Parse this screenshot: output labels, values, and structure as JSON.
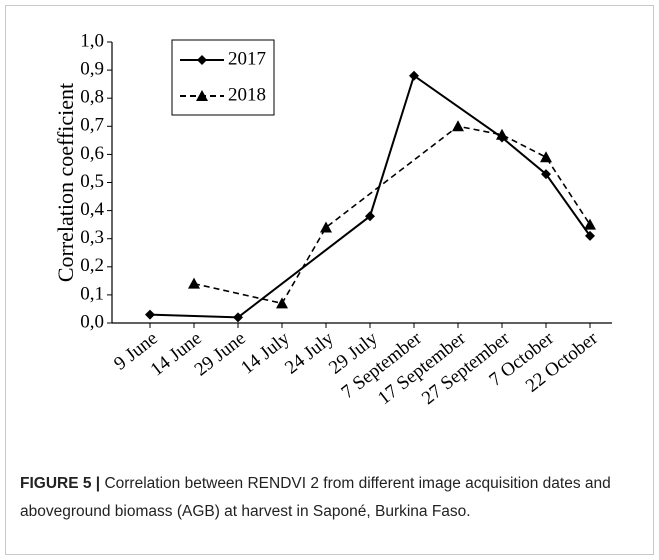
{
  "chart_data": {
    "type": "line",
    "ylabel": "Correlation coefficient",
    "categories": [
      "9 June",
      "14 June",
      "29 June",
      "14 July",
      "24 July",
      "29 July",
      "7 September",
      "17 September",
      "27 September",
      "7 October",
      "22 October"
    ],
    "series": [
      {
        "name": "2017",
        "color": "#000000",
        "dash": false,
        "marker": "diamond",
        "values": [
          0.03,
          null,
          0.02,
          null,
          null,
          0.38,
          0.88,
          null,
          0.66,
          0.53,
          0.31
        ]
      },
      {
        "name": "2018",
        "color": "#000000",
        "dash": true,
        "marker": "triangle",
        "values": [
          null,
          0.14,
          null,
          0.07,
          0.34,
          null,
          null,
          0.7,
          0.67,
          0.59,
          0.35
        ]
      }
    ],
    "connect_gaps": true,
    "ylim": [
      0,
      1
    ],
    "yticks": [
      {
        "value": 0,
        "label": "0,0"
      },
      {
        "value": 0.1,
        "label": "0,1"
      },
      {
        "value": 0.2,
        "label": "0,2"
      },
      {
        "value": 0.3,
        "label": "0,3"
      },
      {
        "value": 0.4,
        "label": "0,4"
      },
      {
        "value": 0.5,
        "label": "0,5"
      },
      {
        "value": 0.6,
        "label": "0,6"
      },
      {
        "value": 0.7,
        "label": "0,7"
      },
      {
        "value": 0.8,
        "label": "0,8"
      },
      {
        "value": 0.9,
        "label": "0,9"
      },
      {
        "value": 1,
        "label": "1,0"
      }
    ],
    "legend": "upper left",
    "caption": {
      "label": "FIGURE 5 |",
      "text": "Correlation between RENDVI 2 from different image acquisition dates and aboveground biomass (AGB) at harvest in Saponé, Burkina Faso."
    }
  }
}
